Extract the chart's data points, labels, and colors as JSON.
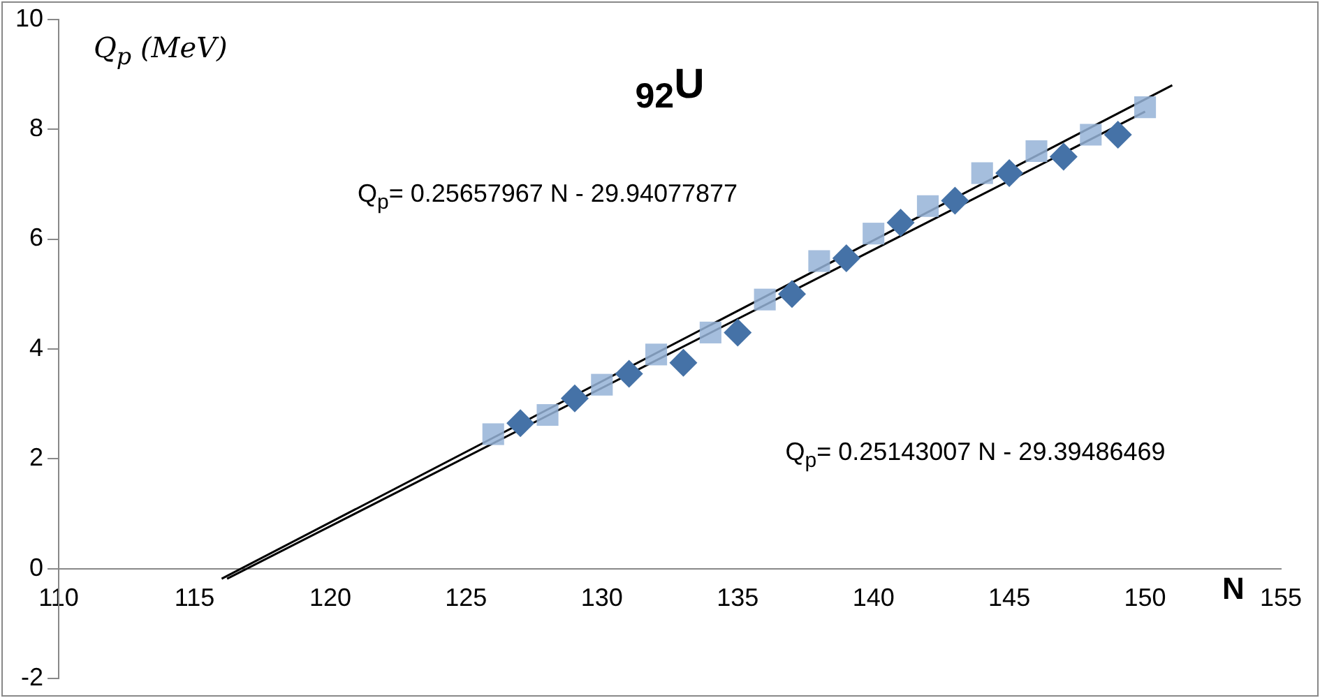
{
  "chart_data": {
    "type": "scatter",
    "title": "$_{92}$U",
    "xlabel": "N",
    "ylabel": "Q$_{p}$ (MeV)",
    "xlim": [
      110,
      155
    ],
    "xticks": [
      110,
      115,
      120,
      125,
      130,
      135,
      140,
      145,
      150,
      155
    ],
    "ylim": [
      -2,
      10
    ],
    "yticks": [
      -2,
      0,
      2,
      4,
      6,
      8,
      10
    ],
    "grid": false,
    "legend": false,
    "series": [
      {
        "marker": "square",
        "color": "#95b3d7",
        "x": [
          126,
          128,
          130,
          132,
          134,
          136,
          138,
          140,
          142,
          144,
          146,
          148,
          150
        ],
        "values": [
          2.45,
          2.8,
          3.35,
          3.9,
          4.3,
          4.9,
          5.6,
          6.1,
          6.6,
          7.2,
          7.6,
          7.9,
          8.4
        ]
      },
      {
        "marker": "diamond",
        "color": "#4572a7",
        "x": [
          127,
          129,
          131,
          133,
          135,
          137,
          139,
          141,
          143,
          145,
          147,
          149
        ],
        "values": [
          2.65,
          3.1,
          3.55,
          3.75,
          4.3,
          5.0,
          5.65,
          6.3,
          6.7,
          7.2,
          7.5,
          7.9
        ]
      },
      {
        "type": "line",
        "marker": "none",
        "color": "#000000",
        "x": [
          116,
          151
        ],
        "values": [
          -0.18,
          8.8
        ]
      },
      {
        "type": "line",
        "marker": "none",
        "color": "#000000",
        "x": [
          116.2,
          150
        ],
        "values": [
          -0.18,
          8.32
        ]
      }
    ],
    "annotations": [
      "Q$_{p}$= 0.25657967 N - 29.94077877",
      "Q$_{p}$= 0.25143007 N - 29.39486469"
    ]
  }
}
